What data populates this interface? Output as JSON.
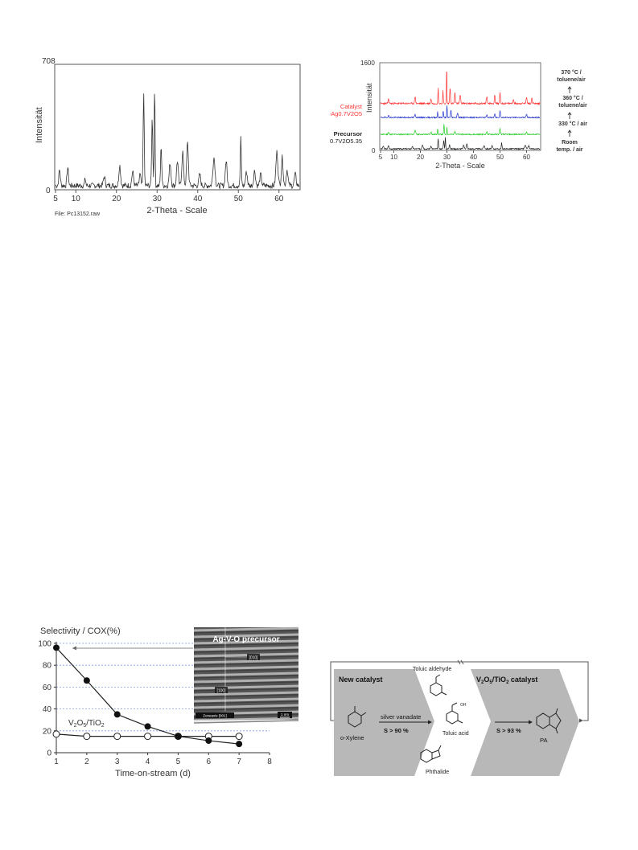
{
  "xrd_single": {
    "ylabel": "Intensität",
    "xlabel": "2-Theta - Scale",
    "file_label": "File: Pc13152.raw",
    "ymax_label": "708",
    "ymin_label": "0",
    "x_ticks": [
      "5",
      "10",
      "20",
      "30",
      "40",
      "50",
      "60"
    ]
  },
  "xrd_stack": {
    "ylabel": "Intensität",
    "xlabel": "2-Theta - Scale",
    "ymax_label": "1600",
    "ymin_label": "0",
    "x_ticks": [
      "5",
      "10",
      "20",
      "30",
      "40",
      "50",
      "60"
    ],
    "catalyst_label_1": "Catalyst",
    "catalyst_label_2": "δ-Ag0.7V2O5",
    "precursor_label_1": "Precursor",
    "precursor_label_2": "Ag0.7V2O5.35",
    "conditions": [
      {
        "label_1": "370 °C /",
        "label_2": "toluene/air"
      },
      {
        "label_1": "360 °C /",
        "label_2": "toluene/air"
      },
      {
        "label_1": "330 °C / air",
        "label_2": ""
      },
      {
        "label_1": "Room",
        "label_2": "temp. / air"
      }
    ],
    "colors": {
      "catalyst": "#ff3333",
      "blue": "#2233cc",
      "green": "#22cc22",
      "precursor": "#222222"
    }
  },
  "chart_data": [
    {
      "type": "line",
      "title": "Selectivity / COX(%)",
      "xlabel": "Time-on-stream (d)",
      "ylabel": "",
      "xlim": [
        1,
        8
      ],
      "ylim": [
        0,
        100
      ],
      "x_ticks": [
        1,
        2,
        3,
        4,
        5,
        6,
        7,
        8
      ],
      "y_ticks": [
        0,
        20,
        40,
        60,
        80,
        100
      ],
      "series": [
        {
          "name": "Ag-V-O precursor",
          "x": [
            1,
            2,
            3,
            4,
            5,
            6,
            7
          ],
          "y": [
            96,
            66,
            35,
            24,
            15,
            11,
            8
          ],
          "marker": "filled"
        },
        {
          "name": "V2O5/TiO2",
          "x": [
            1,
            2,
            3,
            4,
            5,
            6,
            7
          ],
          "y": [
            17,
            15,
            15,
            15,
            15,
            15,
            15
          ],
          "marker": "open"
        }
      ],
      "inset": {
        "title": "Ag-V-O precursor",
        "label_a": "[010]",
        "label_b": "[100]",
        "zone": "Zoneaxis [001]",
        "scale": "1 nm"
      }
    }
  ],
  "scheme": {
    "new_catalyst": "New catalyst",
    "vti_catalyst": "V2O5/TiO2 catalyst",
    "o_xylene": "o-Xylene",
    "reagent": "silver vanadate",
    "sel1": "S > 90 %",
    "sel2": "S > 93 %",
    "toluic_aldehyde": "Toluic aldehyde",
    "toluic_acid": "Toluic acid",
    "phthalide": "Phthalide",
    "pa": "PA"
  }
}
